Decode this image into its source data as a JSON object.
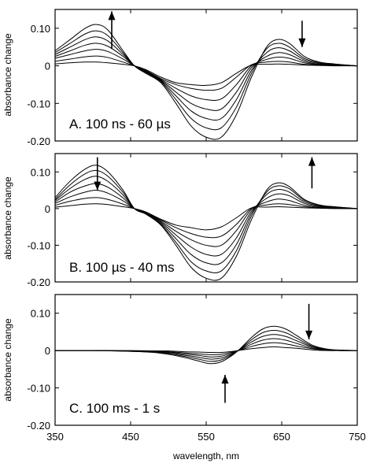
{
  "chart_data": {
    "type": "line",
    "xlabel": "wavelength, nm",
    "x_ticks": [
      350,
      450,
      550,
      650,
      750
    ],
    "xlim": [
      350,
      750
    ],
    "ylim": [
      -0.2,
      0.15
    ],
    "y_ticks": [
      0.1,
      0,
      -0.1,
      -0.2
    ],
    "y_tick_labels": [
      "0.10",
      "0",
      "-0.10",
      "-0.20"
    ],
    "x_tick_labels": [
      "350",
      "450",
      "550",
      "650",
      "750"
    ],
    "panels": [
      {
        "label": "A. 100 ns - 60 µs",
        "ylabel": "absorbance change",
        "x": [
          350,
          370,
          390,
          405,
          420,
          440,
          455,
          470,
          490,
          510,
          530,
          550,
          570,
          590,
          610,
          630,
          645,
          660,
          680,
          700,
          720,
          750
        ],
        "series": [
          {
            "values": [
              0.04,
              0.07,
              0.1,
              0.11,
              0.095,
              0.04,
              0.0,
              -0.02,
              -0.045,
              -0.1,
              -0.16,
              -0.19,
              -0.19,
              -0.13,
              -0.03,
              0.05,
              0.07,
              0.06,
              0.025,
              0.01,
              0.005,
              0.0
            ]
          },
          {
            "values": [
              0.035,
              0.06,
              0.085,
              0.093,
              0.08,
              0.035,
              0.0,
              -0.018,
              -0.042,
              -0.09,
              -0.14,
              -0.165,
              -0.165,
              -0.11,
              -0.02,
              0.045,
              0.06,
              0.05,
              0.02,
              0.008,
              0.004,
              0.0
            ]
          },
          {
            "values": [
              0.03,
              0.05,
              0.07,
              0.077,
              0.066,
              0.03,
              0.0,
              -0.016,
              -0.04,
              -0.08,
              -0.12,
              -0.14,
              -0.14,
              -0.09,
              -0.012,
              0.035,
              0.048,
              0.04,
              0.016,
              0.006,
              0.003,
              0.0
            ]
          },
          {
            "values": [
              0.025,
              0.04,
              0.055,
              0.06,
              0.052,
              0.025,
              0.0,
              -0.015,
              -0.038,
              -0.07,
              -0.1,
              -0.115,
              -0.115,
              -0.07,
              -0.005,
              0.025,
              0.035,
              0.03,
              0.012,
              0.004,
              0.002,
              0.0
            ]
          },
          {
            "values": [
              0.02,
              0.03,
              0.04,
              0.044,
              0.038,
              0.018,
              0.0,
              -0.013,
              -0.036,
              -0.06,
              -0.08,
              -0.09,
              -0.088,
              -0.05,
              0.0,
              0.017,
              0.023,
              0.02,
              0.008,
              0.003,
              0.001,
              0.0
            ]
          },
          {
            "values": [
              0.012,
              0.018,
              0.024,
              0.026,
              0.022,
              0.01,
              0.0,
              -0.012,
              -0.034,
              -0.05,
              -0.06,
              -0.065,
              -0.06,
              -0.03,
              0.003,
              0.01,
              0.012,
              0.01,
              0.004,
              0.002,
              0.001,
              0.0
            ]
          },
          {
            "values": [
              0.005,
              0.008,
              0.01,
              0.01,
              0.008,
              0.004,
              0.0,
              -0.01,
              -0.03,
              -0.045,
              -0.05,
              -0.052,
              -0.045,
              -0.02,
              0.002,
              0.004,
              0.005,
              0.004,
              0.002,
              0.001,
              0.0,
              0.0
            ]
          }
        ],
        "arrows": [
          {
            "x": 425,
            "direction": "up",
            "y_from": 0.045,
            "y_to": 0.145
          },
          {
            "x": 677,
            "direction": "down",
            "y_from": 0.12,
            "y_to": 0.05
          }
        ]
      },
      {
        "label": "B. 100 µs - 40 ms",
        "ylabel": "absorbance change",
        "x": [
          350,
          370,
          390,
          405,
          420,
          440,
          455,
          470,
          490,
          510,
          530,
          550,
          570,
          590,
          610,
          630,
          645,
          660,
          680,
          700,
          720,
          750
        ],
        "series": [
          {
            "values": [
              0.03,
              0.075,
              0.108,
              0.118,
              0.1,
              0.05,
              0.0,
              -0.015,
              -0.045,
              -0.1,
              -0.16,
              -0.19,
              -0.19,
              -0.13,
              -0.03,
              0.05,
              0.07,
              0.06,
              0.025,
              0.01,
              0.005,
              0.0
            ]
          },
          {
            "values": [
              0.025,
              0.065,
              0.095,
              0.104,
              0.088,
              0.044,
              0.0,
              -0.014,
              -0.043,
              -0.092,
              -0.145,
              -0.17,
              -0.17,
              -0.115,
              -0.02,
              0.045,
              0.062,
              0.054,
              0.022,
              0.009,
              0.004,
              0.0
            ]
          },
          {
            "values": [
              0.022,
              0.055,
              0.08,
              0.088,
              0.074,
              0.037,
              0.0,
              -0.013,
              -0.04,
              -0.082,
              -0.125,
              -0.148,
              -0.148,
              -0.098,
              -0.013,
              0.038,
              0.052,
              0.045,
              0.018,
              0.007,
              0.003,
              0.0
            ]
          },
          {
            "values": [
              0.018,
              0.045,
              0.062,
              0.068,
              0.058,
              0.029,
              0.0,
              -0.012,
              -0.037,
              -0.072,
              -0.105,
              -0.125,
              -0.125,
              -0.08,
              -0.007,
              0.028,
              0.04,
              0.035,
              0.014,
              0.005,
              0.002,
              0.0
            ]
          },
          {
            "values": [
              0.014,
              0.032,
              0.045,
              0.05,
              0.042,
              0.021,
              0.0,
              -0.011,
              -0.034,
              -0.062,
              -0.085,
              -0.1,
              -0.1,
              -0.06,
              -0.002,
              0.018,
              0.026,
              0.022,
              0.009,
              0.003,
              0.001,
              0.0
            ]
          },
          {
            "values": [
              0.009,
              0.02,
              0.028,
              0.03,
              0.025,
              0.012,
              0.0,
              -0.01,
              -0.031,
              -0.052,
              -0.068,
              -0.078,
              -0.075,
              -0.043,
              0.001,
              0.01,
              0.013,
              0.011,
              0.005,
              0.002,
              0.001,
              0.0
            ]
          },
          {
            "values": [
              0.004,
              0.008,
              0.012,
              0.013,
              0.011,
              0.005,
              0.0,
              -0.009,
              -0.029,
              -0.045,
              -0.052,
              -0.058,
              -0.05,
              -0.025,
              0.002,
              0.004,
              0.005,
              0.004,
              0.002,
              0.001,
              0.0,
              0.0
            ]
          }
        ],
        "arrows": [
          {
            "x": 406,
            "direction": "down",
            "y_from": 0.14,
            "y_to": 0.05
          },
          {
            "x": 690,
            "direction": "up",
            "y_from": 0.055,
            "y_to": 0.14
          }
        ]
      },
      {
        "label": "C. 100 ms - 1 s",
        "ylabel": "absorbance change",
        "x": [
          350,
          400,
          450,
          480,
          500,
          520,
          540,
          555,
          570,
          585,
          595,
          610,
          625,
          640,
          655,
          670,
          690,
          710,
          730,
          750
        ],
        "series": [
          {
            "values": [
              0.0,
              0.0,
              -0.002,
              -0.005,
              -0.01,
              -0.018,
              -0.028,
              -0.035,
              -0.03,
              -0.012,
              0.005,
              0.035,
              0.058,
              0.065,
              0.058,
              0.04,
              0.015,
              0.004,
              0.001,
              0.0
            ]
          },
          {
            "values": [
              0.0,
              0.0,
              -0.002,
              -0.004,
              -0.008,
              -0.015,
              -0.023,
              -0.029,
              -0.025,
              -0.01,
              0.004,
              0.029,
              0.048,
              0.054,
              0.048,
              0.033,
              0.012,
              0.003,
              0.001,
              0.0
            ]
          },
          {
            "values": [
              0.0,
              0.0,
              -0.001,
              -0.003,
              -0.006,
              -0.012,
              -0.018,
              -0.023,
              -0.02,
              -0.008,
              0.003,
              0.023,
              0.038,
              0.043,
              0.038,
              0.026,
              0.01,
              0.002,
              0.0,
              0.0
            ]
          },
          {
            "values": [
              0.0,
              0.0,
              -0.001,
              -0.002,
              -0.004,
              -0.009,
              -0.013,
              -0.017,
              -0.015,
              -0.006,
              0.002,
              0.017,
              0.028,
              0.032,
              0.028,
              0.019,
              0.007,
              0.002,
              0.0,
              0.0
            ]
          },
          {
            "values": [
              0.0,
              0.0,
              -0.001,
              -0.001,
              -0.003,
              -0.006,
              -0.009,
              -0.011,
              -0.01,
              -0.004,
              0.001,
              0.011,
              0.018,
              0.021,
              0.018,
              0.012,
              0.005,
              0.001,
              0.0,
              0.0
            ]
          },
          {
            "values": [
              0.0,
              0.0,
              0.0,
              -0.001,
              -0.001,
              -0.003,
              -0.004,
              -0.005,
              -0.005,
              -0.002,
              0.001,
              0.005,
              0.008,
              0.01,
              0.008,
              0.006,
              0.002,
              0.0,
              0.0,
              0.0
            ]
          }
        ],
        "arrows": [
          {
            "x": 575,
            "direction": "up",
            "y_from": -0.14,
            "y_to": -0.065
          },
          {
            "x": 686,
            "direction": "down",
            "y_from": 0.125,
            "y_to": 0.03
          }
        ]
      }
    ]
  }
}
